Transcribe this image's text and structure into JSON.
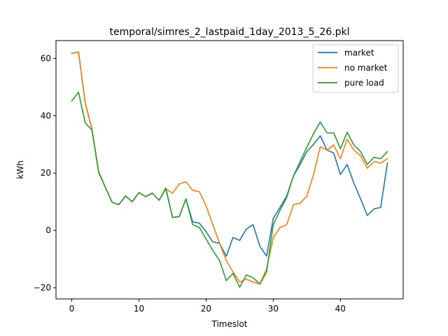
{
  "chart_data": {
    "type": "line",
    "title": "temporal/simres_2_lastpaid_1day_2013_5_26.pkl",
    "xlabel": "Timeslot",
    "ylabel": "kWh",
    "xlim": [
      -2.35,
      49.35
    ],
    "ylim": [
      -23.9,
      66.2
    ],
    "xticks": [
      0,
      10,
      20,
      30,
      40
    ],
    "yticks": [
      -20,
      0,
      20,
      40,
      60
    ],
    "legend_position": "top-right",
    "x": [
      0,
      1,
      2,
      3,
      4,
      5,
      6,
      7,
      8,
      9,
      10,
      11,
      12,
      13,
      14,
      15,
      16,
      17,
      18,
      19,
      20,
      21,
      22,
      23,
      24,
      25,
      26,
      27,
      28,
      29,
      30,
      31,
      32,
      33,
      34,
      35,
      36,
      37,
      38,
      39,
      40,
      41,
      42,
      43,
      44,
      45,
      46,
      47
    ],
    "series": [
      {
        "name": "market",
        "color": "#1f77b4",
        "values": [
          61.8,
          62.2,
          44.5,
          35.2,
          20.2,
          15.0,
          9.8,
          9.0,
          12.0,
          10.0,
          13.2,
          11.8,
          13.0,
          10.5,
          14.5,
          4.5,
          4.8,
          11.0,
          3.0,
          2.5,
          -0.5,
          -4.0,
          -4.5,
          -9.0,
          -2.5,
          -3.5,
          0.5,
          2.0,
          -5.5,
          -9.0,
          4.2,
          8.0,
          12.0,
          19.0,
          23.0,
          27.5,
          30.0,
          33.0,
          28.0,
          27.0,
          19.5,
          23.0,
          16.5,
          11.0,
          5.2,
          7.5,
          8.0,
          23.5
        ]
      },
      {
        "name": "no market",
        "color": "#ff7f0e",
        "values": [
          61.8,
          62.2,
          44.5,
          35.5,
          20.2,
          15.0,
          9.8,
          9.0,
          12.0,
          10.0,
          13.2,
          11.8,
          13.0,
          10.5,
          14.5,
          13.0,
          16.2,
          17.0,
          14.0,
          13.5,
          8.5,
          2.0,
          -4.5,
          -10.5,
          -14.5,
          -18.0,
          -17.0,
          -18.0,
          -18.7,
          -13.5,
          -2.5,
          1.0,
          2.0,
          9.0,
          9.5,
          12.0,
          19.5,
          29.2,
          28.0,
          29.8,
          25.0,
          31.8,
          28.0,
          26.0,
          21.7,
          24.0,
          23.5,
          25.0
        ]
      },
      {
        "name": "pure load",
        "color": "#2ca02c",
        "values": [
          45.2,
          48.2,
          37.5,
          35.0,
          20.5,
          15.0,
          9.8,
          9.0,
          12.0,
          10.0,
          13.2,
          11.8,
          13.0,
          10.5,
          14.8,
          4.5,
          4.8,
          11.0,
          2.0,
          1.0,
          -3.0,
          -7.0,
          -10.5,
          -17.5,
          -15.0,
          -19.8,
          -15.5,
          -16.5,
          -18.7,
          -14.5,
          2.0,
          7.0,
          11.5,
          19.0,
          24.0,
          29.0,
          33.8,
          37.8,
          34.0,
          34.0,
          28.5,
          34.2,
          29.8,
          27.5,
          23.0,
          25.5,
          25.0,
          27.5
        ]
      }
    ]
  }
}
